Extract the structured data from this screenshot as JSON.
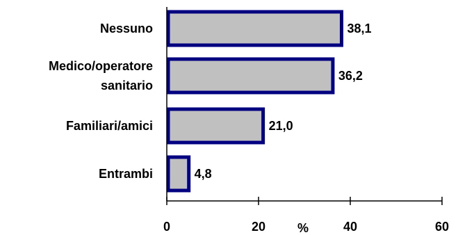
{
  "chart_data": {
    "type": "bar",
    "orientation": "horizontal",
    "categories": [
      [
        "Nessuno"
      ],
      [
        "Medico/operatore",
        "sanitario"
      ],
      [
        "Familiari/amici"
      ],
      [
        "Entrambi"
      ]
    ],
    "values": [
      38.1,
      36.2,
      21.0,
      4.8
    ],
    "value_labels": [
      "38,1",
      "36,2",
      "21,0",
      "4,8"
    ],
    "xlim": [
      0,
      60
    ],
    "xticks": [
      0,
      20,
      40,
      60
    ],
    "xtick_labels": [
      "0",
      "20",
      "40",
      "60"
    ],
    "xlabel": "%",
    "grid": false,
    "colors": {
      "bar_fill": "#c0c0c0",
      "bar_edge": "#000080",
      "axis": "#000000",
      "text": "#000000"
    }
  }
}
